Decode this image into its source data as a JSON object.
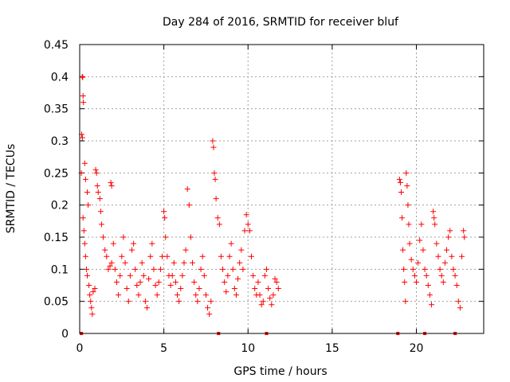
{
  "chart_data": {
    "type": "scatter",
    "title": "Day 284 of 2016, SRMTID for receiver bluf",
    "xlabel": "GPS time / hours",
    "ylabel": "SRMTID / TECUs",
    "xlim": [
      0,
      24
    ],
    "ylim": [
      0,
      0.45
    ],
    "xticks": [
      0,
      5,
      10,
      15,
      20
    ],
    "xtick_labels": [
      "0",
      "5",
      "10",
      "15",
      "20"
    ],
    "yticks": [
      0,
      0.05,
      0.1,
      0.15,
      0.2,
      0.25,
      0.3,
      0.35,
      0.4,
      0.45
    ],
    "ytick_labels": [
      "0",
      "0.05",
      "0.1",
      "0.15",
      "0.2",
      "0.25",
      "0.3",
      "0.35",
      "0.4",
      "0.45"
    ],
    "grid": true,
    "marker": "plus",
    "color": "#ff0000",
    "series": [
      {
        "name": "SRMTID",
        "points": [
          [
            0.15,
            0.4
          ],
          [
            0.18,
            0.399
          ],
          [
            0.2,
            0.37
          ],
          [
            0.22,
            0.36
          ],
          [
            0.12,
            0.31
          ],
          [
            0.16,
            0.305
          ],
          [
            0.1,
            0.25
          ],
          [
            0.3,
            0.265
          ],
          [
            0.35,
            0.24
          ],
          [
            0.45,
            0.22
          ],
          [
            0.5,
            0.2
          ],
          [
            0.2,
            0.18
          ],
          [
            0.25,
            0.16
          ],
          [
            0.3,
            0.14
          ],
          [
            0.35,
            0.12
          ],
          [
            0.4,
            0.1
          ],
          [
            0.45,
            0.09
          ],
          [
            0.55,
            0.075
          ],
          [
            0.6,
            0.06
          ],
          [
            0.65,
            0.05
          ],
          [
            0.7,
            0.04
          ],
          [
            0.75,
            0.03
          ],
          [
            0.8,
            0.065
          ],
          [
            0.9,
            0.07
          ],
          [
            0.95,
            0.255
          ],
          [
            1.0,
            0.25
          ],
          [
            1.05,
            0.23
          ],
          [
            1.1,
            0.22
          ],
          [
            1.2,
            0.21
          ],
          [
            1.25,
            0.19
          ],
          [
            1.3,
            0.17
          ],
          [
            1.4,
            0.15
          ],
          [
            1.5,
            0.13
          ],
          [
            1.6,
            0.12
          ],
          [
            1.7,
            0.1
          ],
          [
            1.8,
            0.105
          ],
          [
            1.9,
            0.11
          ],
          [
            2.0,
            0.14
          ],
          [
            1.85,
            0.235
          ],
          [
            1.9,
            0.23
          ],
          [
            2.1,
            0.1
          ],
          [
            2.2,
            0.08
          ],
          [
            2.3,
            0.06
          ],
          [
            2.4,
            0.09
          ],
          [
            2.5,
            0.12
          ],
          [
            2.6,
            0.15
          ],
          [
            2.7,
            0.11
          ],
          [
            2.8,
            0.07
          ],
          [
            2.9,
            0.05
          ],
          [
            3.0,
            0.09
          ],
          [
            3.1,
            0.13
          ],
          [
            3.2,
            0.14
          ],
          [
            3.3,
            0.1
          ],
          [
            3.4,
            0.075
          ],
          [
            3.5,
            0.06
          ],
          [
            3.6,
            0.08
          ],
          [
            3.7,
            0.11
          ],
          [
            3.8,
            0.09
          ],
          [
            3.9,
            0.05
          ],
          [
            4.0,
            0.04
          ],
          [
            4.1,
            0.085
          ],
          [
            4.2,
            0.12
          ],
          [
            4.3,
            0.14
          ],
          [
            4.4,
            0.1
          ],
          [
            4.5,
            0.075
          ],
          [
            4.6,
            0.06
          ],
          [
            4.7,
            0.08
          ],
          [
            4.8,
            0.1
          ],
          [
            4.9,
            0.12
          ],
          [
            5.0,
            0.19
          ],
          [
            5.05,
            0.18
          ],
          [
            5.1,
            0.15
          ],
          [
            5.2,
            0.12
          ],
          [
            5.3,
            0.09
          ],
          [
            5.4,
            0.075
          ],
          [
            5.5,
            0.09
          ],
          [
            5.6,
            0.11
          ],
          [
            5.7,
            0.08
          ],
          [
            5.8,
            0.06
          ],
          [
            5.9,
            0.05
          ],
          [
            6.0,
            0.07
          ],
          [
            6.1,
            0.09
          ],
          [
            6.2,
            0.11
          ],
          [
            6.3,
            0.13
          ],
          [
            6.4,
            0.225
          ],
          [
            6.5,
            0.2
          ],
          [
            6.6,
            0.15
          ],
          [
            6.7,
            0.11
          ],
          [
            6.8,
            0.08
          ],
          [
            6.9,
            0.06
          ],
          [
            7.0,
            0.05
          ],
          [
            7.1,
            0.07
          ],
          [
            7.2,
            0.1
          ],
          [
            7.3,
            0.12
          ],
          [
            7.4,
            0.09
          ],
          [
            7.5,
            0.06
          ],
          [
            7.6,
            0.04
          ],
          [
            7.7,
            0.03
          ],
          [
            7.8,
            0.05
          ],
          [
            7.9,
            0.3
          ],
          [
            7.95,
            0.29
          ],
          [
            8.0,
            0.25
          ],
          [
            8.05,
            0.24
          ],
          [
            8.1,
            0.21
          ],
          [
            8.2,
            0.18
          ],
          [
            8.3,
            0.17
          ],
          [
            8.4,
            0.12
          ],
          [
            8.5,
            0.1
          ],
          [
            8.6,
            0.08
          ],
          [
            8.7,
            0.065
          ],
          [
            8.8,
            0.09
          ],
          [
            8.9,
            0.12
          ],
          [
            9.0,
            0.14
          ],
          [
            9.1,
            0.1
          ],
          [
            9.2,
            0.07
          ],
          [
            9.3,
            0.06
          ],
          [
            9.4,
            0.085
          ],
          [
            9.5,
            0.11
          ],
          [
            9.6,
            0.13
          ],
          [
            9.7,
            0.1
          ],
          [
            9.8,
            0.16
          ],
          [
            9.9,
            0.185
          ],
          [
            10.0,
            0.17
          ],
          [
            10.1,
            0.16
          ],
          [
            10.2,
            0.12
          ],
          [
            10.3,
            0.09
          ],
          [
            10.4,
            0.07
          ],
          [
            10.5,
            0.06
          ],
          [
            10.6,
            0.08
          ],
          [
            10.7,
            0.06
          ],
          [
            10.8,
            0.045
          ],
          [
            10.9,
            0.05
          ],
          [
            11.0,
            0.09
          ],
          [
            11.1,
            0.1
          ],
          [
            11.2,
            0.07
          ],
          [
            11.3,
            0.055
          ],
          [
            11.4,
            0.045
          ],
          [
            11.5,
            0.06
          ],
          [
            11.6,
            0.085
          ],
          [
            11.7,
            0.08
          ],
          [
            11.8,
            0.07
          ],
          [
            19.0,
            0.24
          ],
          [
            19.05,
            0.235
          ],
          [
            19.1,
            0.22
          ],
          [
            19.15,
            0.18
          ],
          [
            19.2,
            0.13
          ],
          [
            19.25,
            0.1
          ],
          [
            19.3,
            0.08
          ],
          [
            19.35,
            0.05
          ],
          [
            19.4,
            0.25
          ],
          [
            19.45,
            0.23
          ],
          [
            19.5,
            0.2
          ],
          [
            19.55,
            0.17
          ],
          [
            19.6,
            0.14
          ],
          [
            19.7,
            0.115
          ],
          [
            19.8,
            0.1
          ],
          [
            19.9,
            0.09
          ],
          [
            20.0,
            0.08
          ],
          [
            20.1,
            0.11
          ],
          [
            20.2,
            0.145
          ],
          [
            20.3,
            0.17
          ],
          [
            20.4,
            0.13
          ],
          [
            20.5,
            0.1
          ],
          [
            20.6,
            0.09
          ],
          [
            20.7,
            0.075
          ],
          [
            20.8,
            0.06
          ],
          [
            20.9,
            0.045
          ],
          [
            21.0,
            0.19
          ],
          [
            21.05,
            0.18
          ],
          [
            21.1,
            0.17
          ],
          [
            21.2,
            0.14
          ],
          [
            21.3,
            0.12
          ],
          [
            21.4,
            0.1
          ],
          [
            21.5,
            0.09
          ],
          [
            21.6,
            0.08
          ],
          [
            21.7,
            0.11
          ],
          [
            21.8,
            0.13
          ],
          [
            21.9,
            0.15
          ],
          [
            22.0,
            0.16
          ],
          [
            22.1,
            0.12
          ],
          [
            22.2,
            0.1
          ],
          [
            22.3,
            0.09
          ],
          [
            22.4,
            0.075
          ],
          [
            22.5,
            0.05
          ],
          [
            22.6,
            0.04
          ],
          [
            22.7,
            0.12
          ],
          [
            22.8,
            0.16
          ],
          [
            22.85,
            0.15
          ]
        ]
      }
    ],
    "rug_marks_x": [
      0.1,
      8.25,
      11.1,
      18.9,
      20.5,
      22.3
    ]
  }
}
